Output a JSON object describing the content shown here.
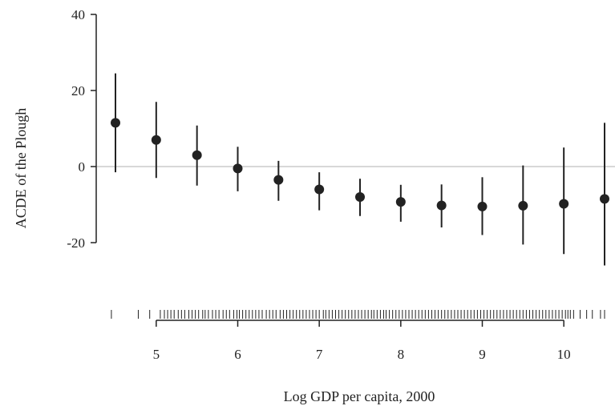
{
  "chart_data": {
    "type": "scatter",
    "title": "",
    "xlabel": "Log GDP per capita, 2000",
    "ylabel": "ACDE of the Plough",
    "xlim": [
      4.5,
      10.5
    ],
    "ylim": [
      -20,
      40
    ],
    "x_ticks": [
      "5",
      "6",
      "7",
      "8",
      "9",
      "10"
    ],
    "y_ticks": [
      "-20",
      "0",
      "20",
      "40"
    ],
    "reference_line_y": 0,
    "grid": false,
    "legend": "none",
    "colors": {
      "points": "#222222",
      "reference_line": "#cccccc",
      "axis": "#222222"
    },
    "series": [
      {
        "x": [
          4.5,
          5.0,
          5.5,
          6.0,
          6.5,
          7.0,
          7.5,
          8.0,
          8.5,
          9.0,
          9.5,
          10.0,
          10.5
        ],
        "y": [
          11.5,
          7.0,
          3.0,
          -0.5,
          -3.5,
          -6.0,
          -8.0,
          -9.3,
          -10.2,
          -10.5,
          -10.3,
          -9.8,
          -8.5
        ],
        "lower": [
          -1.5,
          -3.0,
          -5.0,
          -6.5,
          -9.0,
          -11.5,
          -13.0,
          -14.5,
          -16.0,
          -18.0,
          -20.5,
          -23.0,
          -26.0
        ],
        "upper": [
          24.5,
          17.0,
          10.8,
          5.2,
          1.5,
          -1.5,
          -3.2,
          -4.8,
          -4.7,
          -2.8,
          0.3,
          5.0,
          11.5
        ]
      }
    ],
    "rug": [
      4.45,
      4.78,
      4.92,
      5.05,
      5.1,
      5.14,
      5.18,
      5.22,
      5.27,
      5.31,
      5.35,
      5.4,
      5.44,
      5.48,
      5.52,
      5.57,
      5.6,
      5.64,
      5.69,
      5.73,
      5.77,
      5.82,
      5.86,
      5.9,
      5.95,
      5.99,
      6.02,
      6.06,
      6.1,
      6.14,
      6.18,
      6.22,
      6.26,
      6.3,
      6.35,
      6.39,
      6.43,
      6.47,
      6.52,
      6.56,
      6.6,
      6.64,
      6.68,
      6.72,
      6.76,
      6.8,
      6.84,
      6.88,
      6.92,
      6.96,
      7.0,
      7.05,
      7.08,
      7.12,
      7.16,
      7.2,
      7.24,
      7.28,
      7.32,
      7.36,
      7.4,
      7.44,
      7.48,
      7.52,
      7.56,
      7.6,
      7.64,
      7.67,
      7.71,
      7.75,
      7.79,
      7.82,
      7.86,
      7.9,
      7.94,
      7.98,
      8.02,
      8.06,
      8.1,
      8.14,
      8.18,
      8.22,
      8.26,
      8.3,
      8.34,
      8.38,
      8.42,
      8.46,
      8.5,
      8.54,
      8.58,
      8.62,
      8.66,
      8.7,
      8.74,
      8.78,
      8.82,
      8.86,
      8.9,
      8.94,
      8.98,
      9.02,
      9.06,
      9.1,
      9.14,
      9.18,
      9.22,
      9.26,
      9.3,
      9.34,
      9.38,
      9.42,
      9.46,
      9.5,
      9.54,
      9.58,
      9.62,
      9.66,
      9.7,
      9.74,
      9.78,
      9.82,
      9.86,
      9.9,
      9.94,
      9.98,
      10.02,
      10.05,
      10.08,
      10.12,
      10.2,
      10.28,
      10.35,
      10.45,
      10.5
    ]
  }
}
